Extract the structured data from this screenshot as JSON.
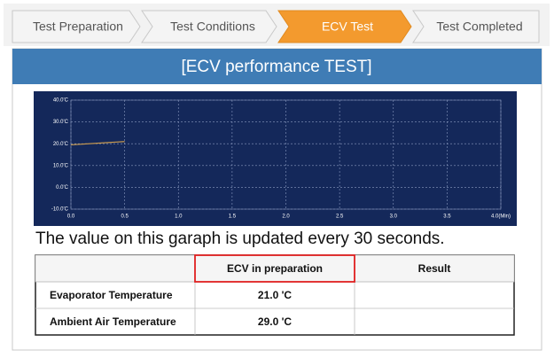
{
  "steps": [
    "Test Preparation",
    "Test Conditions",
    "ECV Test",
    "Test Completed"
  ],
  "panel_title": "[ECV performance TEST]",
  "chart_data": {
    "type": "line",
    "x": [
      0,
      0.5
    ],
    "series": [
      {
        "values": [
          19.5,
          21
        ],
        "color": "#c89a50"
      }
    ],
    "xlim": [
      0,
      4
    ],
    "ylim": [
      -10,
      40
    ],
    "xticks": [
      {
        "value": 0,
        "label": "0.0"
      },
      0.5,
      {
        "value": 1,
        "label": "1.0"
      },
      1.5,
      {
        "value": 2,
        "label": "2.0"
      },
      2.5,
      {
        "value": 3,
        "label": "3.0"
      },
      3.5,
      {
        "value": 4,
        "label": "4.0(Min)"
      }
    ],
    "yticks": [
      {
        "value": -10,
        "label": "-10.0'C"
      },
      {
        "value": 0,
        "label": "0.0'C"
      },
      {
        "value": 10,
        "label": "10.0'C"
      },
      {
        "value": 20,
        "label": "20.0'C"
      },
      {
        "value": 30,
        "label": "30.0'C"
      },
      {
        "value": 40,
        "label": "40.0'C"
      }
    ],
    "grid": true
  },
  "note": "The value on this garaph is updated every 30 seconds.",
  "table": {
    "header": [
      "ECV in preparation",
      "Result"
    ],
    "rows": [
      [
        "Evaporator Temperature",
        "21.0 'C"
      ],
      [
        "Ambient Air Temperature",
        "29.0 'C"
      ]
    ]
  }
}
